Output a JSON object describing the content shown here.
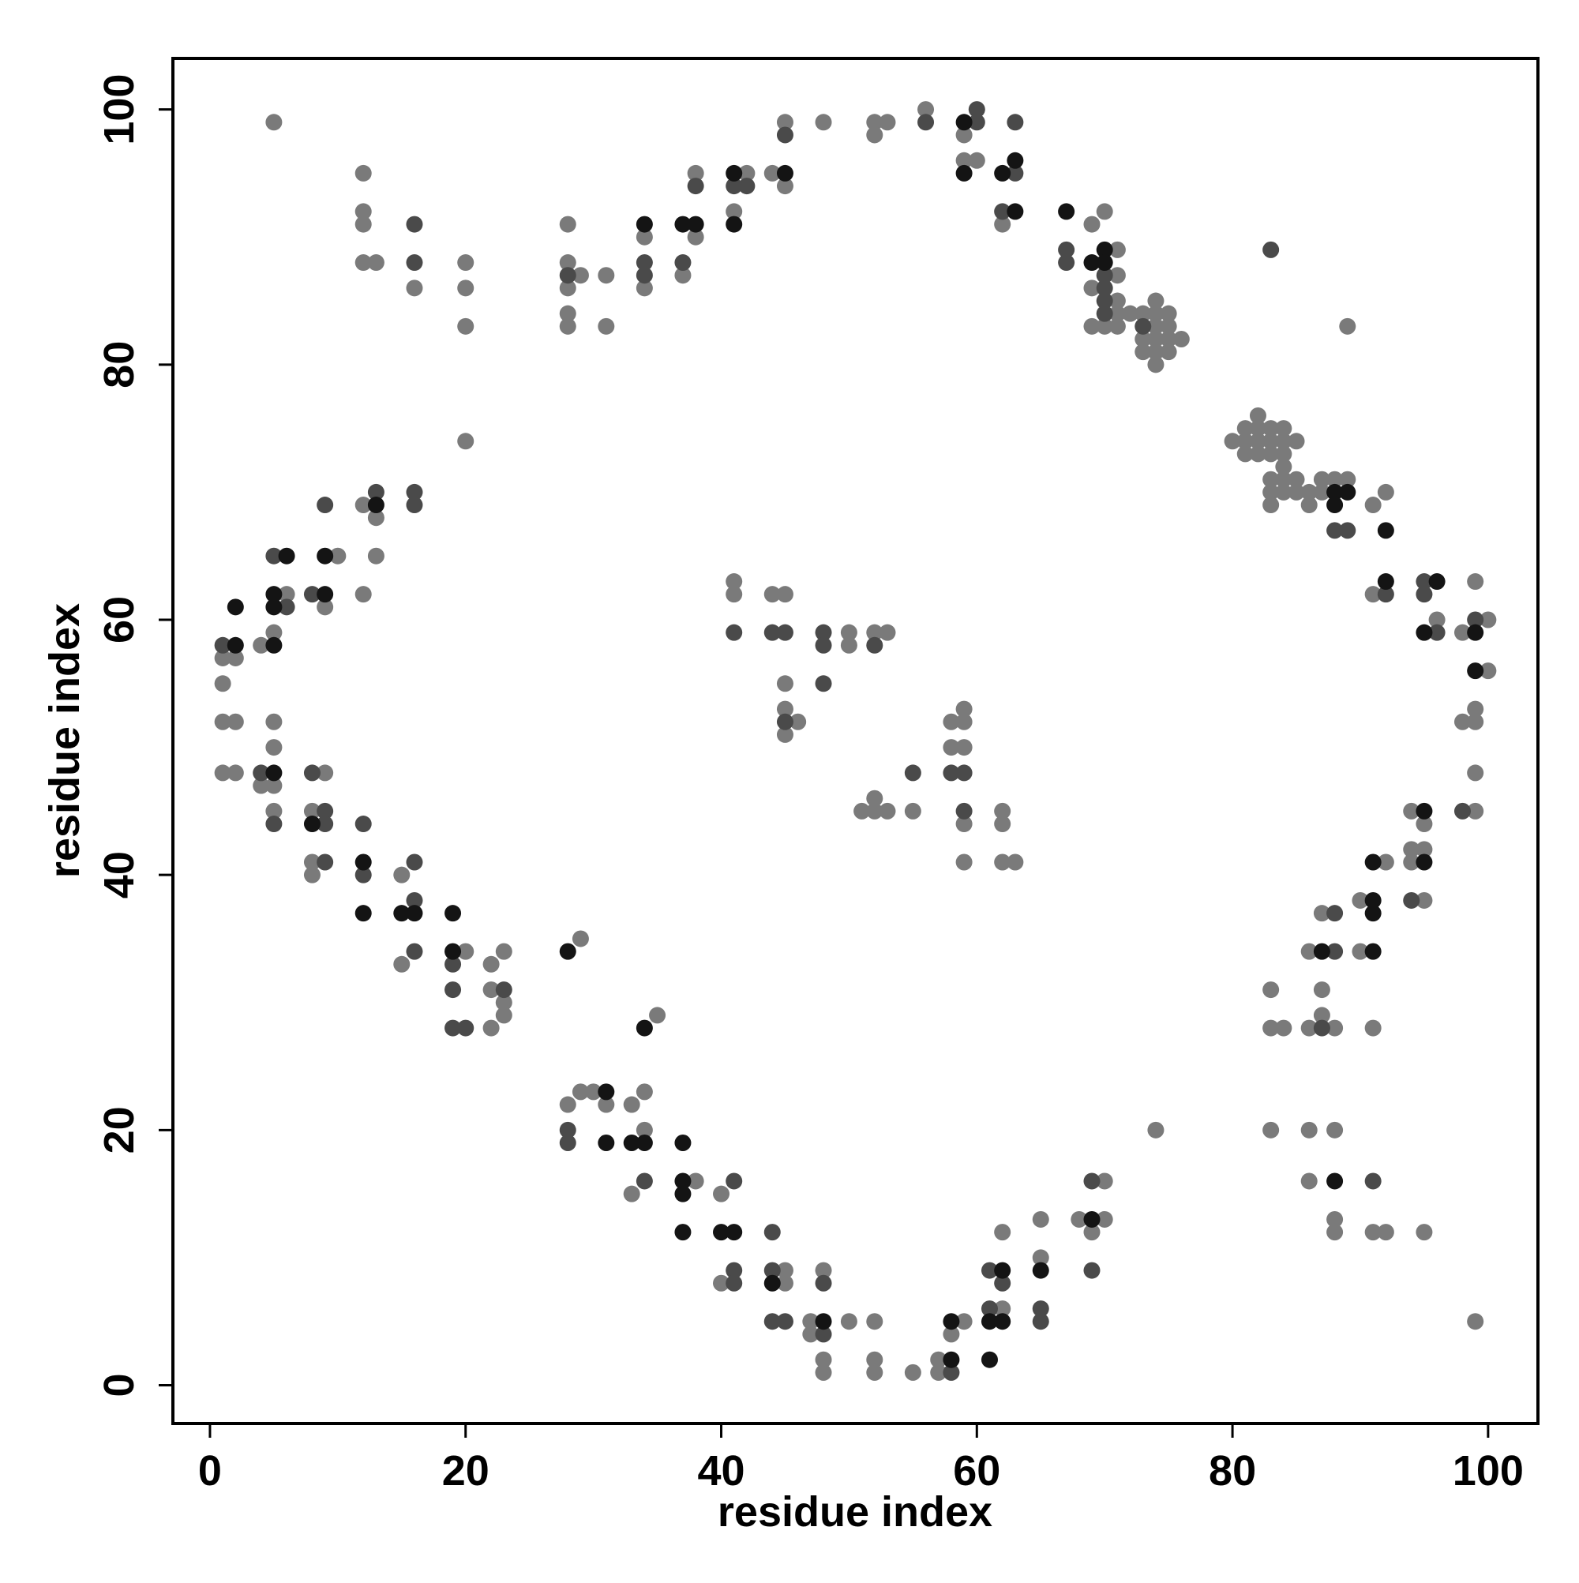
{
  "chart_data": {
    "type": "scatter",
    "xlabel": "residue index",
    "ylabel": "residue index",
    "xlim": [
      -2.9,
      103.9
    ],
    "ylim": [
      -3,
      104
    ],
    "xticks": [
      0,
      20,
      40,
      60,
      80,
      100
    ],
    "yticks": [
      0,
      20,
      40,
      60,
      80,
      100
    ],
    "grid": false,
    "series": [
      {
        "color": "#7a7a7a",
        "x": [
          5,
          12,
          12,
          12,
          12,
          13,
          16,
          20,
          20,
          20,
          20,
          28,
          28,
          28,
          28,
          28,
          29,
          31,
          31,
          34,
          34,
          37,
          38,
          38,
          41,
          42,
          44,
          45,
          45,
          48,
          52,
          52,
          53,
          56,
          59,
          59,
          60,
          62,
          69,
          70,
          71,
          69,
          71,
          71,
          69,
          70,
          71,
          71,
          72,
          73,
          73,
          73,
          74,
          74,
          74,
          74,
          74,
          74,
          75,
          75,
          75,
          75,
          76,
          89,
          80,
          81,
          81,
          81,
          82,
          82,
          82,
          82,
          83,
          83,
          83,
          84,
          84,
          84,
          85,
          84,
          83,
          84,
          85,
          83,
          84,
          85,
          86,
          87,
          86,
          83,
          87,
          88,
          89,
          91,
          92,
          91,
          96,
          99,
          98,
          100,
          100,
          99,
          98,
          99,
          99,
          99,
          94,
          95,
          94,
          95,
          94,
          92,
          90,
          95,
          90,
          91,
          87,
          86,
          83,
          87,
          87,
          86,
          88,
          83,
          84,
          83,
          86,
          88,
          86,
          88,
          88,
          91,
          92,
          95,
          99,
          74,
          2,
          1,
          1,
          1,
          2,
          1,
          2,
          4,
          5,
          6,
          9,
          10,
          12,
          13,
          12,
          13,
          5,
          5,
          4,
          5,
          5,
          9,
          8,
          8,
          8,
          15,
          15,
          20,
          22,
          23,
          22,
          23,
          23,
          22,
          29,
          35,
          28,
          29,
          30,
          31,
          33,
          34,
          34,
          33,
          38,
          40,
          40,
          45,
          45,
          47,
          47,
          48,
          48,
          48,
          50,
          52,
          52,
          52,
          55,
          57,
          57,
          58,
          59,
          62,
          62,
          65,
          65,
          68,
          69,
          70,
          70,
          41,
          41,
          44,
          45,
          45,
          45,
          46,
          45,
          50,
          50,
          52,
          53,
          51,
          52,
          52,
          53,
          55,
          58,
          59,
          58,
          59,
          59,
          59,
          59,
          62,
          62,
          62,
          63
        ],
        "values": [
          99,
          95,
          92,
          91,
          88,
          88,
          86,
          88,
          86,
          83,
          74,
          91,
          88,
          86,
          84,
          83,
          87,
          87,
          83,
          90,
          86,
          87,
          95,
          90,
          92,
          95,
          95,
          94,
          99,
          99,
          99,
          98,
          99,
          100,
          98,
          96,
          96,
          91,
          91,
          92,
          89,
          86,
          87,
          85,
          83,
          83,
          84,
          83,
          84,
          84,
          82,
          81,
          85,
          84,
          83,
          82,
          81,
          80,
          84,
          83,
          82,
          81,
          82,
          83,
          74,
          75,
          74,
          73,
          76,
          75,
          74,
          73,
          75,
          74,
          73,
          75,
          74,
          73,
          74,
          72,
          71,
          71,
          71,
          70,
          70,
          70,
          70,
          70,
          69,
          69,
          71,
          71,
          71,
          69,
          70,
          62,
          60,
          63,
          59,
          60,
          56,
          53,
          52,
          52,
          48,
          45,
          45,
          44,
          42,
          42,
          41,
          41,
          38,
          38,
          34,
          28,
          37,
          34,
          31,
          31,
          29,
          28,
          28,
          28,
          28,
          20,
          20,
          20,
          16,
          13,
          12,
          12,
          12,
          12,
          5,
          20,
          57,
          57,
          55,
          52,
          52,
          48,
          48,
          58,
          59,
          62,
          61,
          65,
          69,
          68,
          62,
          65,
          52,
          50,
          47,
          47,
          45,
          48,
          45,
          41,
          40,
          40,
          33,
          34,
          33,
          34,
          31,
          30,
          29,
          28,
          35,
          29,
          22,
          23,
          23,
          22,
          22,
          23,
          20,
          15,
          16,
          15,
          8,
          9,
          8,
          5,
          4,
          9,
          2,
          1,
          5,
          5,
          2,
          1,
          1,
          2,
          1,
          4,
          5,
          12,
          6,
          13,
          10,
          13,
          12,
          16,
          13,
          63,
          62,
          62,
          62,
          55,
          53,
          52,
          51,
          59,
          58,
          59,
          59,
          45,
          46,
          45,
          45,
          45,
          52,
          52,
          50,
          50,
          53,
          44,
          41,
          45,
          44,
          41,
          41
        ]
      },
      {
        "color": "#4a4a4a",
        "x": [
          1,
          6,
          5,
          8,
          9,
          13,
          16,
          16,
          4,
          5,
          8,
          9,
          9,
          9,
          12,
          12,
          16,
          16,
          16,
          19,
          19,
          19,
          20,
          23,
          28,
          28,
          34,
          41,
          41,
          41,
          44,
          44,
          44,
          45,
          48,
          48,
          58,
          61,
          62,
          61,
          65,
          65,
          69,
          69,
          16,
          16,
          28,
          34,
          34,
          37,
          38,
          41,
          42,
          45,
          56,
          60,
          60,
          63,
          63,
          62,
          67,
          67,
          70,
          70,
          70,
          70,
          73,
          83,
          88,
          89,
          92,
          95,
          95,
          96,
          99,
          98,
          94,
          88,
          88,
          87,
          91,
          41,
          44,
          45,
          45,
          48,
          48,
          52,
          48,
          55,
          58,
          59,
          59
        ],
        "values": [
          58,
          61,
          65,
          62,
          69,
          70,
          70,
          69,
          48,
          44,
          48,
          45,
          44,
          41,
          44,
          40,
          41,
          38,
          34,
          33,
          31,
          28,
          28,
          31,
          20,
          19,
          16,
          16,
          9,
          8,
          12,
          9,
          5,
          5,
          4,
          8,
          1,
          9,
          8,
          6,
          6,
          5,
          16,
          9,
          91,
          88,
          87,
          88,
          87,
          88,
          94,
          94,
          94,
          98,
          99,
          100,
          99,
          95,
          99,
          92,
          89,
          88,
          87,
          86,
          85,
          84,
          83,
          89,
          67,
          67,
          62,
          63,
          62,
          59,
          60,
          45,
          38,
          37,
          34,
          28,
          16,
          59,
          59,
          59,
          52,
          59,
          58,
          58,
          55,
          48,
          48,
          48,
          45
        ]
      },
      {
        "color": "#141414",
        "x": [
          2,
          2,
          5,
          5,
          5,
          6,
          9,
          9,
          13,
          5,
          8,
          12,
          12,
          15,
          16,
          19,
          19,
          28,
          34,
          31,
          31,
          33,
          34,
          37,
          37,
          37,
          37,
          40,
          41,
          44,
          48,
          58,
          58,
          62,
          61,
          62,
          61,
          65,
          69,
          34,
          37,
          38,
          41,
          41,
          45,
          59,
          59,
          62,
          63,
          63,
          67,
          69,
          70,
          70,
          88,
          89,
          88,
          92,
          92,
          96,
          95,
          99,
          99,
          95,
          95,
          91,
          91,
          91,
          91,
          87,
          88
        ],
        "values": [
          58,
          61,
          58,
          61,
          62,
          65,
          62,
          65,
          69,
          48,
          44,
          41,
          37,
          37,
          37,
          37,
          34,
          34,
          28,
          23,
          19,
          19,
          19,
          19,
          16,
          15,
          12,
          12,
          12,
          8,
          5,
          2,
          5,
          9,
          5,
          5,
          2,
          9,
          13,
          91,
          91,
          91,
          95,
          91,
          95,
          99,
          95,
          95,
          96,
          92,
          92,
          88,
          89,
          88,
          70,
          70,
          69,
          67,
          63,
          63,
          59,
          59,
          56,
          45,
          41,
          41,
          38,
          37,
          34,
          34,
          16
        ]
      }
    ]
  }
}
